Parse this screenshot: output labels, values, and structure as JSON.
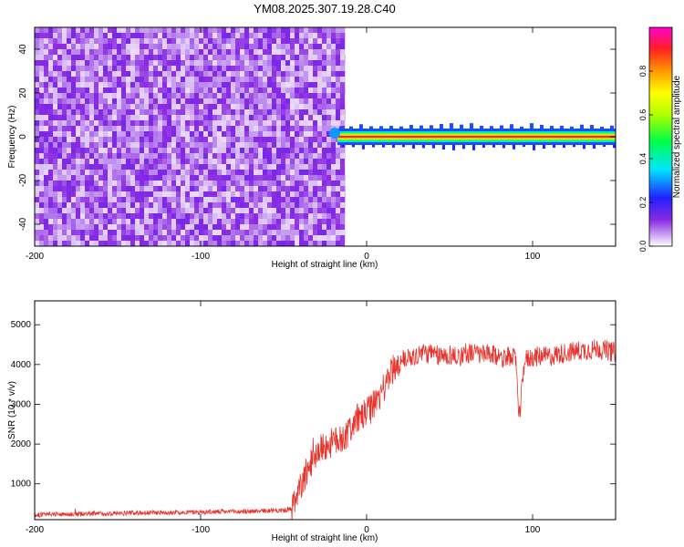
{
  "title": "YM08.2025.307.19.28.C40",
  "chart_data": [
    {
      "type": "heatmap",
      "title": "",
      "xlabel": "Height of straight line (km)",
      "ylabel": "Frequency (Hz)",
      "xlim": [
        -200,
        150
      ],
      "ylim": [
        -50,
        50
      ],
      "x_ticks": [
        -200,
        -100,
        0,
        100
      ],
      "y_ticks": [
        -40,
        -20,
        0,
        20,
        40
      ],
      "grid": false,
      "colorbar": {
        "label": "Normalized spectral amplitude",
        "range": [
          0,
          1
        ],
        "ticks": [
          0.0,
          0.2,
          0.4,
          0.6,
          0.8
        ],
        "colormap": "rainbow (white-purple-blue-cyan-green-yellow-orange-red-magenta)"
      },
      "features": {
        "noise_region_x": [
          -200,
          -13
        ],
        "noise_level": 0.1,
        "signal_line_frequency_hz": 0,
        "signal_line_x": [
          -22,
          150
        ],
        "signal_peak_level": 0.9
      }
    },
    {
      "type": "line",
      "title": "",
      "xlabel": "Height of straight line (km)",
      "ylabel": "SNR (10 * v/v)",
      "xlim": [
        -200,
        150
      ],
      "ylim": [
        100,
        5600
      ],
      "x_ticks": [
        -200,
        -100,
        0,
        100
      ],
      "y_ticks": [
        1000,
        2000,
        3000,
        4000,
        5000
      ],
      "grid": false,
      "series": [
        {
          "color": "#e8322c",
          "x": [
            -200,
            -180,
            -160,
            -140,
            -120,
            -100,
            -80,
            -60,
            -50,
            -45,
            -42,
            -40,
            -37,
            -35,
            -32,
            -30,
            -27,
            -25,
            -22,
            -20,
            -17,
            -15,
            -12,
            -10,
            -7,
            -5,
            -2,
            0,
            3,
            5,
            8,
            10,
            13,
            15,
            18,
            20,
            23,
            25,
            28,
            30,
            35,
            40,
            45,
            50,
            55,
            60,
            70,
            80,
            90,
            92,
            95,
            100,
            110,
            120,
            130,
            140,
            150
          ],
          "values": [
            220,
            240,
            250,
            270,
            280,
            290,
            300,
            320,
            330,
            360,
            620,
            900,
            1200,
            1400,
            1650,
            1800,
            1900,
            1950,
            2000,
            2050,
            2100,
            2150,
            2250,
            2400,
            2550,
            2650,
            2700,
            2800,
            2900,
            3050,
            3200,
            3400,
            3650,
            3850,
            3950,
            4050,
            4150,
            4200,
            4200,
            4250,
            4300,
            4250,
            4200,
            4250,
            4200,
            4300,
            4250,
            4200,
            4150,
            2600,
            4100,
            4200,
            4200,
            4300,
            4350,
            4400,
            4300
          ]
        }
      ]
    }
  ]
}
